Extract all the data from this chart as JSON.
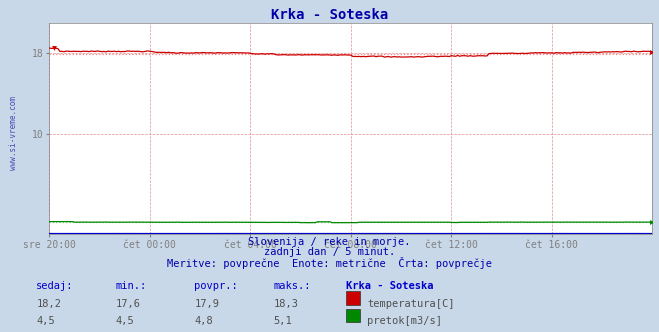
{
  "title": "Krka - Soteska",
  "title_color": "#0000aa",
  "bg_color": "#c8d8e8",
  "plot_bg_color": "#ffffff",
  "grid_color_v": "#d08080",
  "grid_color_h": "#d09090",
  "x_tick_labels": [
    "sre 20:00",
    "čet 00:00",
    "čet 04:00",
    "čet 08:00",
    "čet 12:00",
    "čet 16:00"
  ],
  "x_tick_positions": [
    0,
    48,
    96,
    144,
    192,
    240
  ],
  "y_ticks": [
    10,
    18
  ],
  "ylim": [
    0,
    21
  ],
  "xlim": [
    0,
    288
  ],
  "temp_color": "#cc0000",
  "flow_color": "#008800",
  "height_color": "#0000cc",
  "avg_line_color_temp": "#ff8080",
  "avg_line_color_flow": "#80cc80",
  "avg_line_color_height": "#8080ff",
  "watermark": "www.si-vreme.com",
  "subtitle1": "Slovenija / reke in morje.",
  "subtitle2": "zadnji dan / 5 minut.",
  "subtitle3": "Meritve: povprečne  Enote: metrične  Črta: povprečje",
  "label_sedaj": "sedaj:",
  "label_min": "min.:",
  "label_povpr": "povpr.:",
  "label_maks": "maks.:",
  "label_location": "Krka - Soteska",
  "label_temp": "temperatura[C]",
  "label_flow": "pretok[m3/s]",
  "temp_current": 18.2,
  "temp_min": 17.6,
  "temp_avg": 17.9,
  "temp_max": 18.3,
  "flow_current": 4.5,
  "flow_min": 4.5,
  "flow_avg": 4.8,
  "flow_max": 5.1,
  "n_points": 289,
  "temp_scale_min": 0,
  "temp_scale_max": 40,
  "flow_scale_min": 0,
  "flow_scale_max": 40,
  "height_scale_min": 0,
  "height_scale_max": 3
}
